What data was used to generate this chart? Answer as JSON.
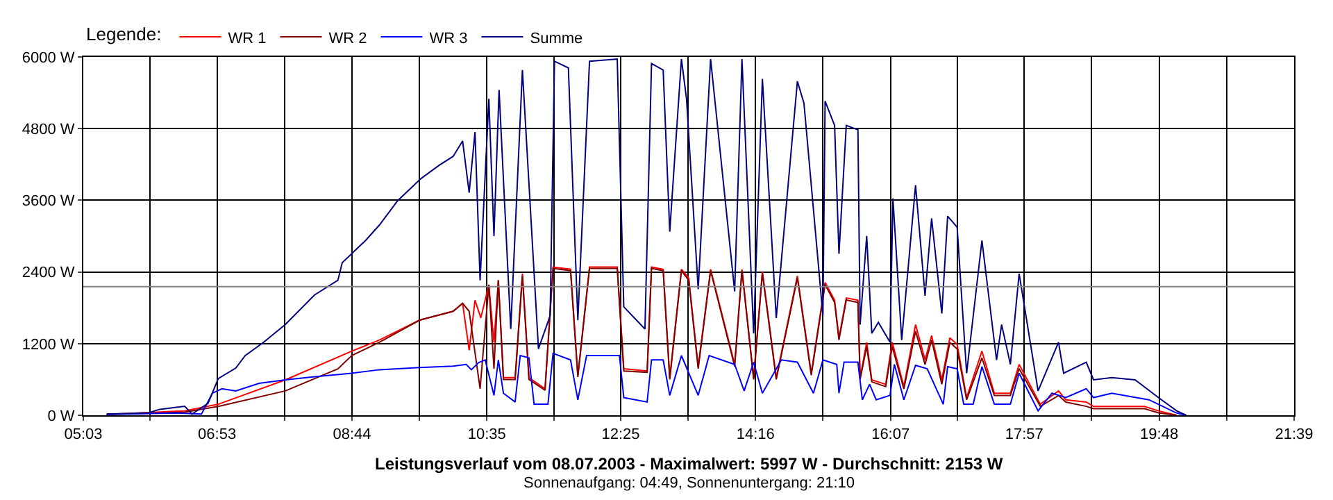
{
  "chart_data": {
    "type": "line",
    "title": "Leistungsverlauf vom 08.07.2003 - Maximalwert: 5997 W - Durchschnitt: 2153 W",
    "subtitle": "Sonnenaufgang: 04:49, Sonnenuntergang: 21:10",
    "legend_title": "Legende:",
    "legend": "top left",
    "grid": true,
    "xlim": [
      5.05,
      21.65
    ],
    "xticks": [
      {
        "value": 5.05,
        "label": "05:03"
      },
      {
        "value": 5.9667,
        "label": null
      },
      {
        "value": 6.8833,
        "label": "06:53"
      },
      {
        "value": 7.8083,
        "label": null
      },
      {
        "value": 8.7333,
        "label": "08:44"
      },
      {
        "value": 9.6583,
        "label": null
      },
      {
        "value": 10.5833,
        "label": "10:35"
      },
      {
        "value": 11.5,
        "label": null
      },
      {
        "value": 12.4167,
        "label": "12:25"
      },
      {
        "value": 13.3417,
        "label": null
      },
      {
        "value": 14.2667,
        "label": "14:16"
      },
      {
        "value": 15.1917,
        "label": null
      },
      {
        "value": 16.1167,
        "label": "16:07"
      },
      {
        "value": 17.0333,
        "label": null
      },
      {
        "value": 17.95,
        "label": "17:57"
      },
      {
        "value": 18.875,
        "label": null
      },
      {
        "value": 19.8,
        "label": "19:48"
      },
      {
        "value": 20.725,
        "label": null
      },
      {
        "value": 21.65,
        "label": "21:39"
      }
    ],
    "ylim": [
      0,
      6000
    ],
    "yticks": [
      {
        "value": 0,
        "label": "0 W"
      },
      {
        "value": 1200,
        "label": "1200 W"
      },
      {
        "value": 2400,
        "label": "2400 W"
      },
      {
        "value": 3600,
        "label": "3600 W"
      },
      {
        "value": 4800,
        "label": "4800 W"
      },
      {
        "value": 6000,
        "label": "6000 W"
      }
    ],
    "ref_lines": [
      {
        "axis": "y",
        "value": 2153,
        "color": "#808080"
      }
    ],
    "series": [
      {
        "name": "WR 1",
        "color": "#ff0000",
        "x": [
          5.37,
          6.06,
          6.44,
          6.9,
          7.82,
          8.73,
          9.11,
          9.66,
          10.12,
          10.25,
          10.34,
          10.42,
          10.5,
          10.61,
          10.68,
          10.74,
          10.81,
          10.97,
          11.07,
          11.16,
          11.38,
          11.49,
          11.73,
          11.83,
          11.99,
          12.37,
          12.46,
          12.78,
          12.84,
          13.0,
          13.09,
          13.25,
          13.35,
          13.48,
          13.65,
          13.98,
          14.08,
          14.24,
          14.36,
          14.55,
          14.84,
          15.03,
          15.22,
          15.35,
          15.41,
          15.51,
          15.67,
          15.7,
          15.79,
          15.86,
          16.05,
          16.14,
          16.3,
          16.46,
          16.59,
          16.68,
          16.82,
          16.93,
          17.03,
          17.16,
          17.37,
          17.54,
          17.76,
          17.88,
          18.17,
          18.42,
          18.52,
          18.8,
          18.9,
          19.6,
          19.79,
          20.04
        ],
        "values": [
          15,
          52,
          74,
          185,
          593,
          1074,
          1260,
          1593,
          1741,
          1875,
          1089,
          1927,
          1630,
          2186,
          1223,
          2260,
          630,
          630,
          2371,
          630,
          445,
          2482,
          2445,
          667,
          2482,
          2482,
          778,
          741,
          2482,
          2445,
          630,
          2445,
          2297,
          815,
          2445,
          852,
          2445,
          630,
          2408,
          630,
          2334,
          704,
          2223,
          1927,
          1297,
          1964,
          1927,
          630,
          1223,
          593,
          519,
          1223,
          482,
          1519,
          926,
          1334,
          593,
          1297,
          1186,
          296,
          1074,
          370,
          370,
          852,
          185,
          408,
          259,
          222,
          148,
          148,
          74,
          0
        ]
      },
      {
        "name": "WR 2",
        "color": "#800000",
        "x": [
          5.37,
          6.06,
          6.44,
          6.9,
          7.82,
          8.54,
          8.73,
          9.11,
          9.66,
          10.12,
          10.25,
          10.34,
          10.49,
          10.61,
          10.68,
          10.74,
          10.81,
          10.97,
          11.07,
          11.16,
          11.38,
          11.49,
          11.73,
          11.83,
          11.99,
          12.37,
          12.46,
          12.78,
          12.84,
          13.0,
          13.09,
          13.25,
          13.35,
          13.48,
          13.65,
          13.98,
          14.08,
          14.24,
          14.36,
          14.55,
          14.84,
          15.03,
          15.22,
          15.35,
          15.41,
          15.51,
          15.67,
          15.7,
          15.79,
          15.86,
          16.05,
          16.14,
          16.3,
          16.46,
          16.59,
          16.68,
          16.82,
          16.93,
          17.03,
          17.16,
          17.37,
          17.54,
          17.76,
          17.88,
          18.17,
          18.42,
          18.52,
          18.8,
          18.9,
          19.6,
          19.79,
          20.04
        ],
        "values": [
          15,
          37,
          52,
          148,
          408,
          778,
          1000,
          1223,
          1593,
          1741,
          1875,
          1741,
          445,
          2186,
          778,
          2260,
          600,
          600,
          2330,
          600,
          420,
          2460,
          2420,
          640,
          2460,
          2460,
          740,
          720,
          2460,
          2420,
          600,
          2420,
          2260,
          780,
          2420,
          820,
          2420,
          600,
          2380,
          600,
          2300,
          670,
          2190,
          1890,
          1260,
          1930,
          1890,
          600,
          1150,
          560,
          480,
          1150,
          440,
          1410,
          850,
          1260,
          520,
          1220,
          1110,
          260,
          960,
          330,
          330,
          780,
          150,
          330,
          220,
          150,
          110,
          110,
          40,
          0
        ]
      },
      {
        "name": "WR 3",
        "color": "#0000ff",
        "x": [
          5.37,
          6.32,
          6.67,
          6.82,
          6.95,
          7.14,
          7.46,
          7.82,
          8.22,
          8.73,
          9.11,
          9.66,
          10.12,
          10.3,
          10.37,
          10.47,
          10.56,
          10.68,
          10.74,
          10.81,
          10.97,
          11.04,
          11.16,
          11.23,
          11.42,
          11.49,
          11.73,
          11.83,
          11.95,
          12.4,
          12.46,
          12.78,
          12.84,
          13.0,
          13.09,
          13.25,
          13.48,
          13.63,
          13.98,
          14.11,
          14.24,
          14.36,
          14.62,
          14.84,
          15.06,
          15.19,
          15.38,
          15.41,
          15.48,
          15.67,
          15.73,
          15.83,
          15.92,
          16.11,
          16.17,
          16.3,
          16.46,
          16.62,
          16.84,
          16.9,
          17.03,
          17.12,
          17.25,
          17.37,
          17.54,
          17.76,
          17.88,
          18.14,
          18.33,
          18.52,
          18.8,
          18.9,
          19.15,
          19.66,
          20.04,
          20.17
        ],
        "values": [
          15,
          37,
          20,
          370,
          445,
          408,
          534,
          593,
          645,
          704,
          763,
          800,
          822,
          852,
          763,
          882,
          926,
          333,
          926,
          370,
          222,
          1000,
          963,
          185,
          185,
          1037,
          926,
          259,
          1000,
          1000,
          296,
          222,
          926,
          926,
          333,
          1000,
          333,
          1000,
          852,
          408,
          889,
          370,
          926,
          889,
          370,
          926,
          852,
          370,
          889,
          889,
          259,
          519,
          259,
          333,
          852,
          259,
          837,
          778,
          185,
          815,
          778,
          185,
          185,
          815,
          185,
          185,
          704,
          74,
          370,
          296,
          445,
          296,
          370,
          259,
          37,
          0
        ]
      },
      {
        "name": "Summe",
        "color": "#000080",
        "x": [
          5.37,
          5.94,
          6.1,
          6.44,
          6.54,
          6.76,
          6.9,
          7.14,
          7.27,
          7.52,
          7.82,
          8.22,
          8.54,
          8.6,
          8.92,
          9.11,
          9.36,
          9.68,
          9.93,
          10.12,
          10.25,
          10.34,
          10.42,
          10.49,
          10.61,
          10.68,
          10.75,
          10.91,
          11.07,
          11.29,
          11.45,
          11.51,
          11.7,
          11.83,
          11.99,
          12.37,
          12.46,
          12.75,
          12.84,
          13.0,
          13.09,
          13.25,
          13.32,
          13.48,
          13.65,
          13.98,
          14.08,
          14.24,
          14.36,
          14.55,
          14.84,
          14.93,
          15.19,
          15.22,
          15.35,
          15.41,
          15.51,
          15.67,
          15.7,
          15.79,
          15.86,
          15.95,
          16.11,
          16.15,
          16.27,
          16.46,
          16.59,
          16.68,
          16.82,
          16.9,
          17.03,
          17.16,
          17.37,
          17.57,
          17.64,
          17.76,
          17.88,
          18.14,
          18.42,
          18.49,
          18.8,
          18.9,
          19.15,
          19.47,
          19.79,
          20.04,
          20.17
        ],
        "values": [
          20,
          40,
          100,
          150,
          20,
          200,
          615,
          790,
          1000,
          1220,
          1520,
          2015,
          2260,
          2556,
          2927,
          3186,
          3594,
          3964,
          4187,
          4335,
          4594,
          3727,
          4742,
          2260,
          5298,
          3001,
          5446,
          1445,
          5780,
          1112,
          1667,
          5928,
          5817,
          1593,
          5928,
          5965,
          1815,
          1445,
          5891,
          5780,
          3075,
          5965,
          5298,
          2112,
          5965,
          2075,
          5965,
          1371,
          5632,
          1630,
          5594,
          5224,
          1667,
          5261,
          4853,
          2705,
          4853,
          4780,
          1519,
          3001,
          1371,
          1556,
          1223,
          3631,
          1260,
          3853,
          2001,
          3297,
          1704,
          3334,
          3149,
          704,
          2927,
          926,
          1519,
          852,
          2371,
          408,
          1223,
          704,
          889,
          593,
          630,
          593,
          296,
          74,
          0
        ]
      }
    ]
  }
}
